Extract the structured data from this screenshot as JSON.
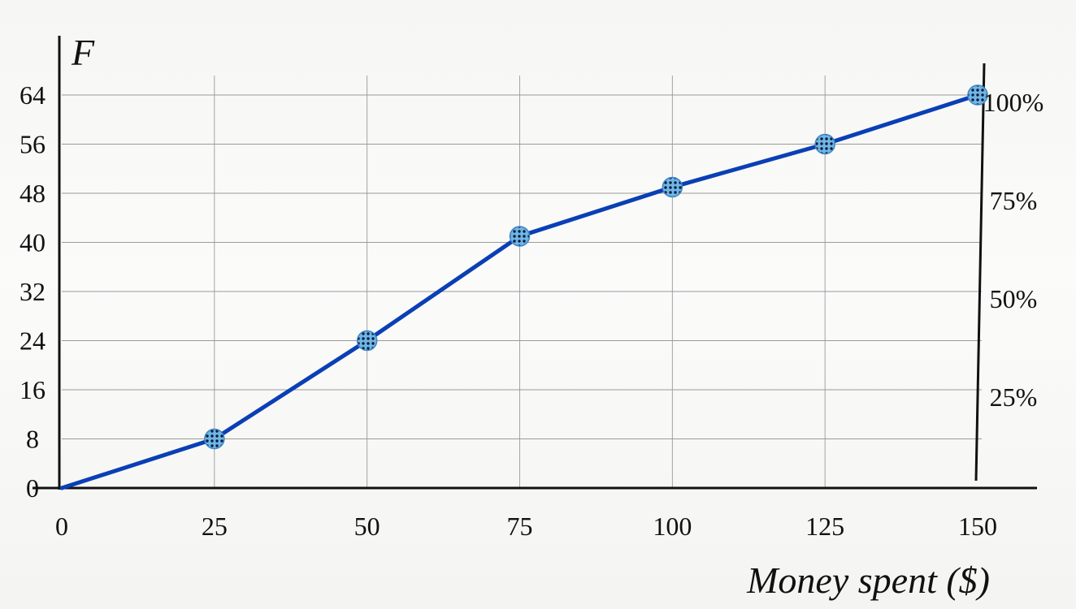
{
  "chart_data": {
    "type": "line",
    "xlabel": "Money spent ($)",
    "ylabel": "F",
    "x": [
      0,
      25,
      50,
      75,
      100,
      125,
      150
    ],
    "series": [
      {
        "values": [
          0,
          8,
          24,
          41,
          49,
          56,
          64
        ]
      }
    ],
    "xlim": [
      0,
      150
    ],
    "ylim": [
      0,
      64
    ],
    "x_ticks": [
      "0",
      "25",
      "50",
      "75",
      "100",
      "125",
      "150"
    ],
    "y_ticks": [
      "0",
      "8",
      "16",
      "24",
      "32",
      "40",
      "48",
      "56",
      "64"
    ],
    "secondary_y_ticks": [
      "25%",
      "50%",
      "75%",
      "100%"
    ],
    "secondary_y_values": [
      16,
      32,
      48,
      64
    ],
    "grid": true,
    "line_color": "#0a3fb5",
    "marker_color": "#5aa9dc"
  }
}
